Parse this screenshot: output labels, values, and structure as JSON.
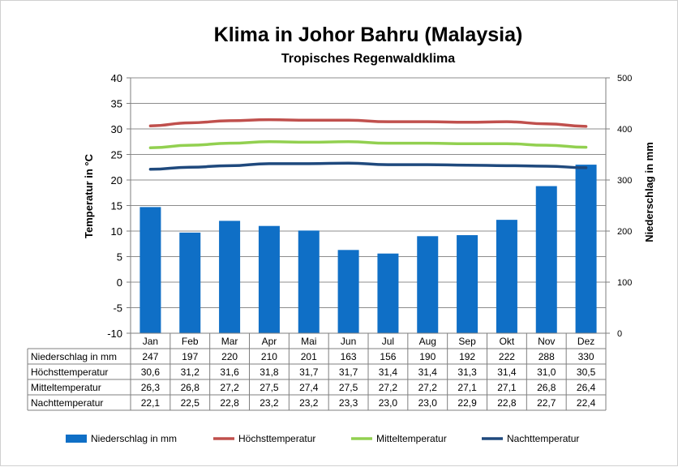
{
  "chart_data": {
    "type": "bar",
    "title": "Klima in Johor Bahru (Malaysia)",
    "subtitle": "Tropisches Regenwaldklima",
    "categories": [
      "Jan",
      "Feb",
      "Mar",
      "Apr",
      "Mai",
      "Jun",
      "Jul",
      "Aug",
      "Sep",
      "Okt",
      "Nov",
      "Dez"
    ],
    "ylabel_left": "Temperatur in °C",
    "ylabel_right": "Niederschlag in mm",
    "ylim_left": [
      -10,
      40
    ],
    "yticks_left": [
      "-10",
      "-5",
      "0",
      "5",
      "10",
      "15",
      "20",
      "25",
      "30",
      "35",
      "40"
    ],
    "ylim_right": [
      0,
      500
    ],
    "yticks_right": [
      "0",
      "100",
      "200",
      "300",
      "400",
      "500"
    ],
    "grid": true,
    "legend_position": "bottom",
    "series": [
      {
        "name": "Niederschlag in mm",
        "type": "bar",
        "axis": "right",
        "color": "#0F6FC6",
        "values": [
          247,
          197,
          220,
          210,
          201,
          163,
          156,
          190,
          192,
          222,
          288,
          330
        ],
        "labels": [
          "247",
          "197",
          "220",
          "210",
          "201",
          "163",
          "156",
          "190",
          "192",
          "222",
          "288",
          "330"
        ]
      },
      {
        "name": "Höchsttemperatur",
        "type": "line",
        "axis": "left",
        "color": "#C0504D",
        "values": [
          30.6,
          31.2,
          31.6,
          31.8,
          31.7,
          31.7,
          31.4,
          31.4,
          31.3,
          31.4,
          31.0,
          30.5
        ],
        "labels": [
          "30,6",
          "31,2",
          "31,6",
          "31,8",
          "31,7",
          "31,7",
          "31,4",
          "31,4",
          "31,3",
          "31,4",
          "31,0",
          "30,5"
        ]
      },
      {
        "name": "Mitteltemperatur",
        "type": "line",
        "axis": "left",
        "color": "#92D050",
        "values": [
          26.3,
          26.8,
          27.2,
          27.5,
          27.4,
          27.5,
          27.2,
          27.2,
          27.1,
          27.1,
          26.8,
          26.4
        ],
        "labels": [
          "26,3",
          "26,8",
          "27,2",
          "27,5",
          "27,4",
          "27,5",
          "27,2",
          "27,2",
          "27,1",
          "27,1",
          "26,8",
          "26,4"
        ]
      },
      {
        "name": "Nachttemperatur",
        "type": "line",
        "axis": "left",
        "color": "#1F497D",
        "values": [
          22.1,
          22.5,
          22.8,
          23.2,
          23.2,
          23.3,
          23.0,
          23.0,
          22.9,
          22.8,
          22.7,
          22.4
        ],
        "labels": [
          "22,1",
          "22,5",
          "22,8",
          "23,2",
          "23,2",
          "23,3",
          "23,0",
          "23,0",
          "22,9",
          "22,8",
          "22,7",
          "22,4"
        ]
      }
    ]
  }
}
